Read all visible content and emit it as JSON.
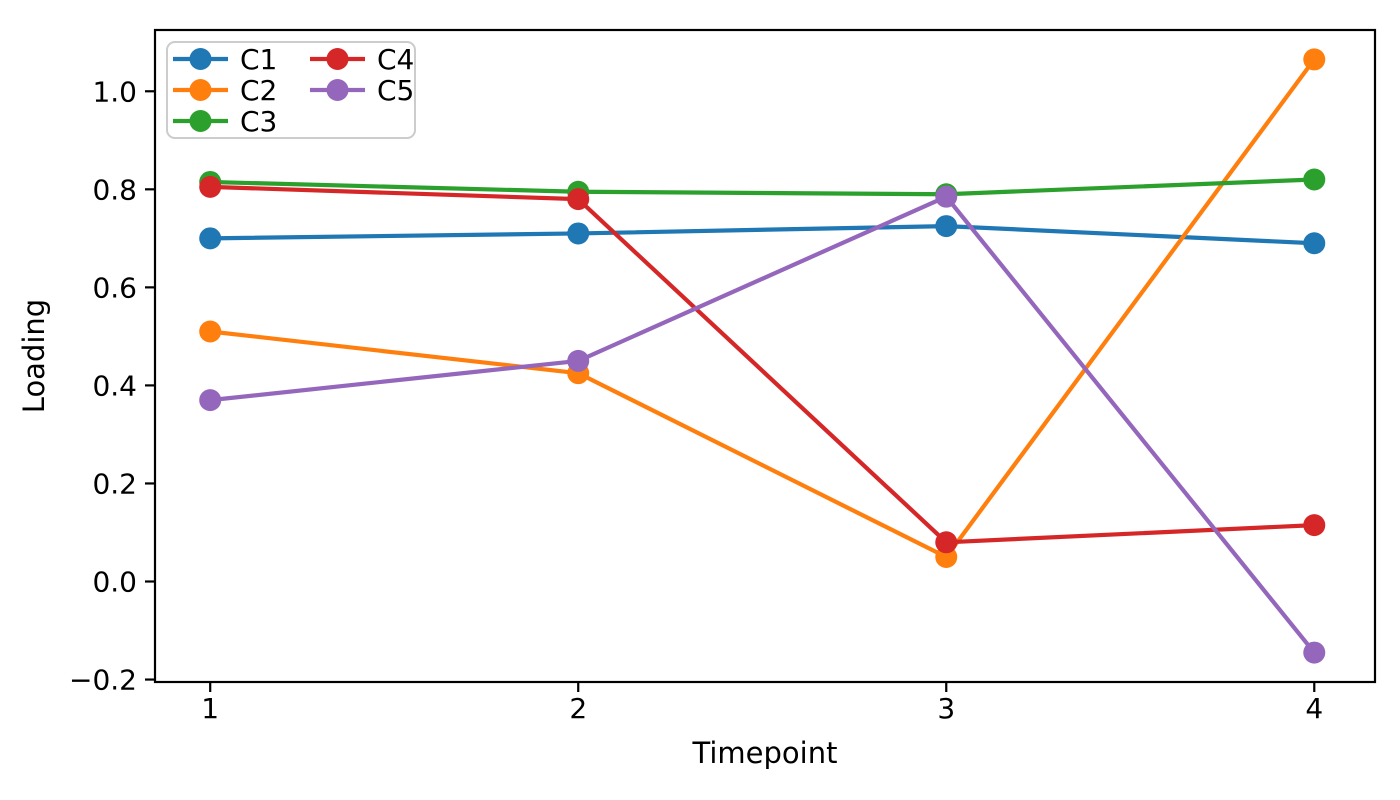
{
  "chart_data": {
    "type": "line",
    "title": "",
    "xlabel": "Timepoint",
    "ylabel": "Loading",
    "x": [
      1,
      2,
      3,
      4
    ],
    "xlim": [
      0.85,
      4.165
    ],
    "ylim": [
      -0.205,
      1.125
    ],
    "xticks": [
      1,
      2,
      3,
      4
    ],
    "xtick_labels": [
      "1",
      "2",
      "3",
      "4"
    ],
    "yticks": [
      -0.2,
      0.0,
      0.2,
      0.4,
      0.6,
      0.8,
      1.0
    ],
    "ytick_labels": [
      "−0.2",
      "0.0",
      "0.2",
      "0.4",
      "0.6",
      "0.8",
      "1.0"
    ],
    "grid": false,
    "legend": {
      "position": "upper left",
      "ncol": 2,
      "entries": [
        "C1",
        "C2",
        "C3",
        "C4",
        "C5"
      ]
    },
    "series": [
      {
        "name": "C1",
        "color": "#1f77b4",
        "values": [
          0.7,
          0.71,
          0.725,
          0.69
        ]
      },
      {
        "name": "C2",
        "color": "#ff7f0e",
        "values": [
          0.51,
          0.425,
          0.05,
          1.065
        ]
      },
      {
        "name": "C3",
        "color": "#2ca02c",
        "values": [
          0.815,
          0.795,
          0.79,
          0.82
        ]
      },
      {
        "name": "C4",
        "color": "#d62728",
        "values": [
          0.805,
          0.78,
          0.08,
          0.115
        ]
      },
      {
        "name": "C5",
        "color": "#9467bd",
        "values": [
          0.37,
          0.45,
          0.785,
          -0.145
        ]
      }
    ],
    "style": {
      "axis_color": "#000000",
      "background": "#ffffff",
      "legend_border": "#cccccc",
      "legend_background": "#ffffff"
    }
  }
}
